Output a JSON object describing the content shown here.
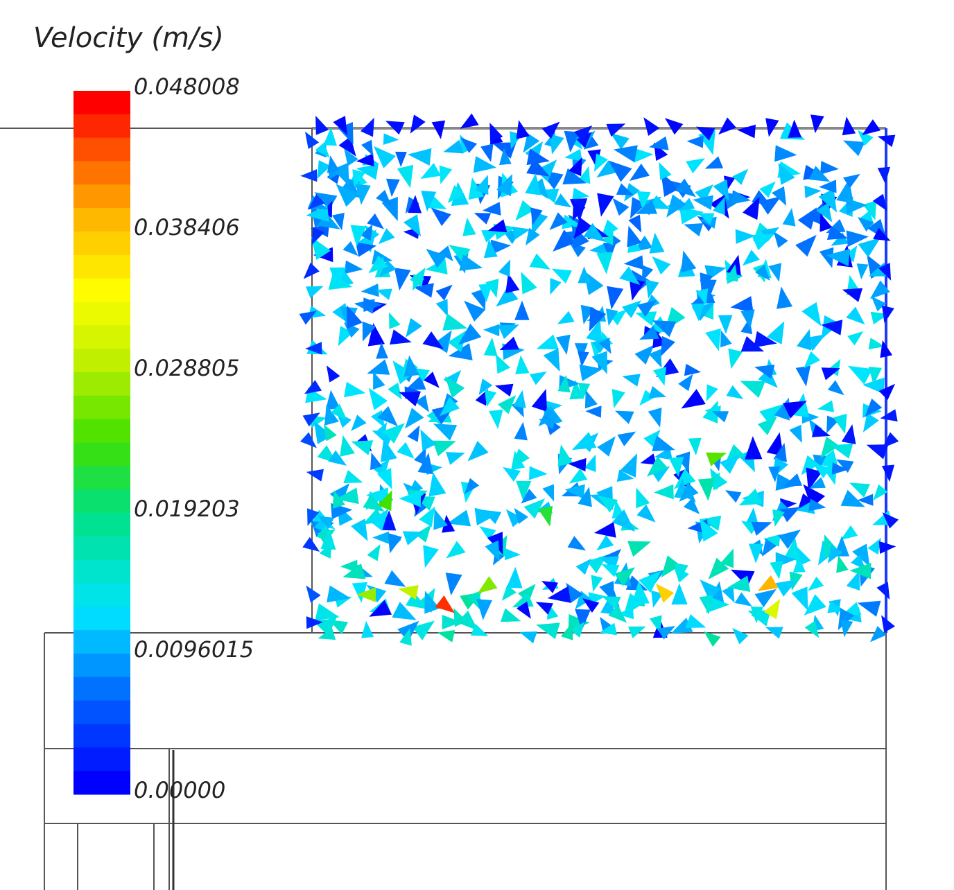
{
  "legend": {
    "title": "Velocity (m/s)",
    "min": 0,
    "max": 0.048008,
    "ticks": [
      {
        "value": 0.048008,
        "label": "0.048008"
      },
      {
        "value": 0.038406,
        "label": "0.038406"
      },
      {
        "value": 0.028805,
        "label": "0.028805"
      },
      {
        "value": 0.019203,
        "label": "0.019203"
      },
      {
        "value": 0.0096015,
        "label": "0.0096015"
      },
      {
        "value": 0,
        "label": "0.00000"
      }
    ],
    "colormap": [
      "#0000ff",
      "#0080ff",
      "#00e5ff",
      "#00e070",
      "#60e000",
      "#ffff00",
      "#ffb000",
      "#ff5000",
      "#ff0000"
    ]
  },
  "vector_field": {
    "seed": 7,
    "count": 780,
    "typical_velocity": 0.0096,
    "hotspot_velocities": [
      0.046,
      0.04,
      0.038,
      0.032,
      0.03,
      0.028,
      0.027,
      0.025,
      0.024,
      0.022
    ]
  }
}
